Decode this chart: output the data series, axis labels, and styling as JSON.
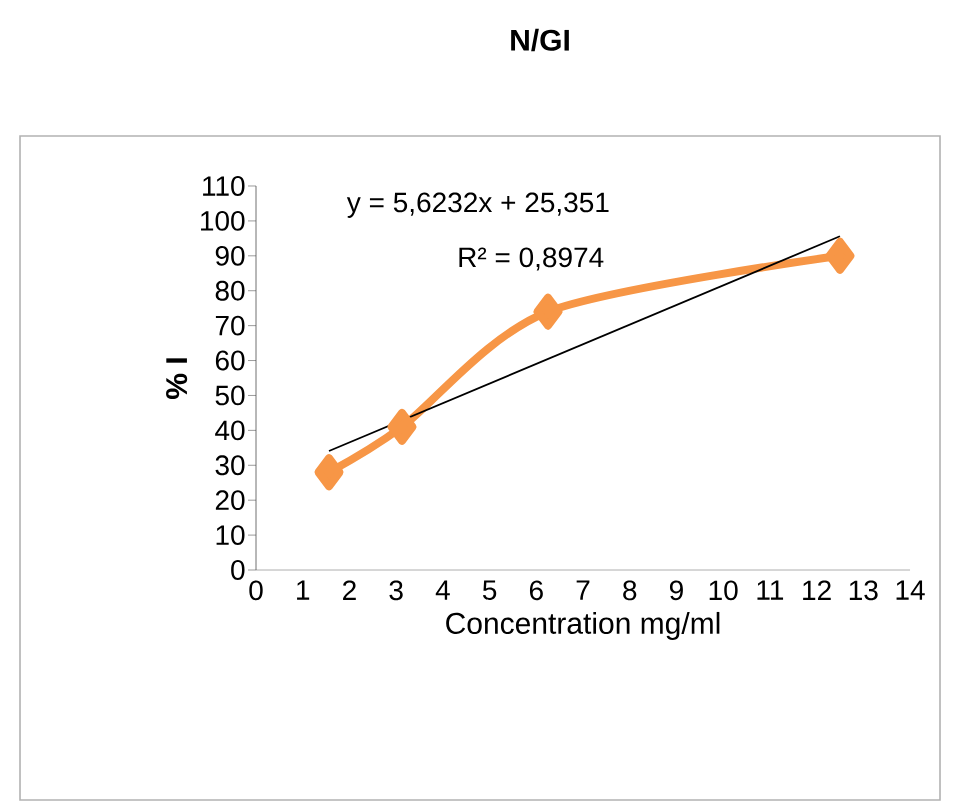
{
  "chart_data": {
    "type": "line",
    "title": "N/GI",
    "xlabel": "Concentration mg/ml",
    "ylabel": "% I",
    "series": [
      {
        "color": "#f79646",
        "marker": "diamond",
        "x": [
          1.5625,
          3.125,
          6.25,
          12.5
        ],
        "values": [
          28,
          41,
          74,
          90
        ]
      },
      {
        "color": "#000000",
        "marker": "none",
        "x": [
          1.5625,
          12.5
        ],
        "values": [
          34.1,
          95.6
        ]
      }
    ],
    "annotations": [
      "y = 5,6232x + 25,351",
      "R² = 0,8974"
    ],
    "xlim": [
      0,
      14
    ],
    "xticks": [
      0,
      1,
      2,
      3,
      4,
      5,
      6,
      7,
      8,
      9,
      10,
      11,
      12,
      13,
      14
    ],
    "ylim": [
      0,
      110
    ],
    "yticks": [
      0,
      10,
      20,
      30,
      40,
      50,
      60,
      70,
      80,
      90,
      100,
      110
    ]
  }
}
